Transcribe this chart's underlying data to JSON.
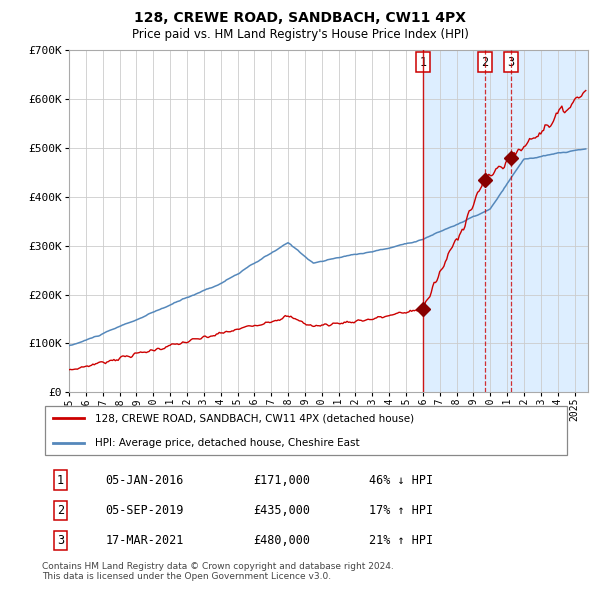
{
  "title": "128, CREWE ROAD, SANDBACH, CW11 4PX",
  "subtitle": "Price paid vs. HM Land Registry's House Price Index (HPI)",
  "ylim": [
    0,
    700000
  ],
  "yticks": [
    0,
    100000,
    200000,
    300000,
    400000,
    500000,
    600000,
    700000
  ],
  "ytick_labels": [
    "£0",
    "£100K",
    "£200K",
    "£300K",
    "£400K",
    "£500K",
    "£600K",
    "£700K"
  ],
  "xlim_start": 1995.0,
  "xlim_end": 2025.8,
  "line_color_red": "#cc0000",
  "line_color_blue": "#5588bb",
  "shaded_start": 2016.0,
  "shaded_color": "#ddeeff",
  "vline_color": "#cc0000",
  "sale1_year": 2016.02,
  "sale1_price": 171000,
  "sale2_year": 2019.67,
  "sale2_price": 435000,
  "sale3_year": 2021.21,
  "sale3_price": 480000,
  "legend_label_red": "128, CREWE ROAD, SANDBACH, CW11 4PX (detached house)",
  "legend_label_blue": "HPI: Average price, detached house, Cheshire East",
  "table_rows": [
    {
      "num": "1",
      "date": "05-JAN-2016",
      "price": "£171,000",
      "hpi": "46% ↓ HPI"
    },
    {
      "num": "2",
      "date": "05-SEP-2019",
      "price": "£435,000",
      "hpi": "17% ↑ HPI"
    },
    {
      "num": "3",
      "date": "17-MAR-2021",
      "price": "£480,000",
      "hpi": "21% ↑ HPI"
    }
  ],
  "footer": "Contains HM Land Registry data © Crown copyright and database right 2024.\nThis data is licensed under the Open Government Licence v3.0."
}
